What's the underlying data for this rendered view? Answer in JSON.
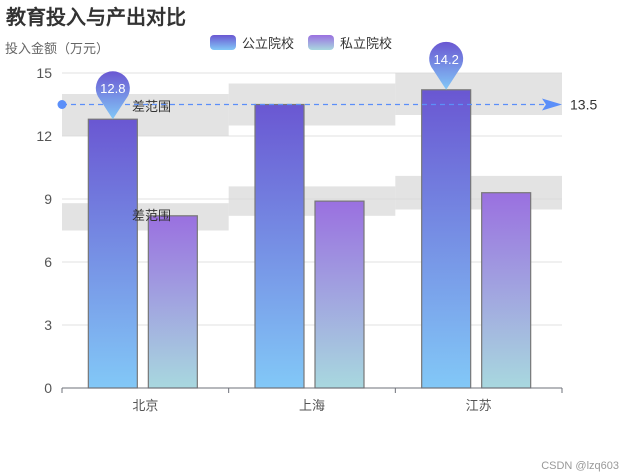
{
  "chart_data": {
    "type": "bar",
    "title": "教育投入与产出对比",
    "ylabel": "投入金额（万元）",
    "xlabel": "",
    "categories": [
      "北京",
      "上海",
      "江苏"
    ],
    "series": [
      {
        "name": "公立院校",
        "values": [
          12.8,
          13.5,
          14.2
        ],
        "colors": [
          "#6a57d2",
          "#82c8f7"
        ]
      },
      {
        "name": "私立院校",
        "values": [
          8.2,
          8.9,
          9.3
        ],
        "colors": [
          "#9a70e0",
          "#a8d8df"
        ]
      }
    ],
    "ylim": [
      0,
      15
    ],
    "yticks": [
      0,
      3,
      6,
      9,
      12,
      15
    ],
    "grid": true,
    "legend_position": "top-center",
    "max_marker": {
      "category": "江苏",
      "label": "14.2"
    },
    "min_marker": {
      "category": "北京",
      "label": "12.8"
    },
    "average_line": {
      "value": 13.5,
      "label": "13.5",
      "color": "#5b8ff9"
    },
    "range_bands": [
      {
        "label": "差范围",
        "series": 0,
        "ranges": [
          [
            12,
            14
          ],
          [
            12.5,
            14.5
          ],
          [
            13,
            15
          ]
        ]
      },
      {
        "label": "差范围",
        "series": 1,
        "ranges": [
          [
            7.5,
            8.8
          ],
          [
            8.2,
            9.6
          ],
          [
            8.5,
            10.1
          ]
        ]
      }
    ]
  },
  "watermark": "CSDN @lzq603"
}
